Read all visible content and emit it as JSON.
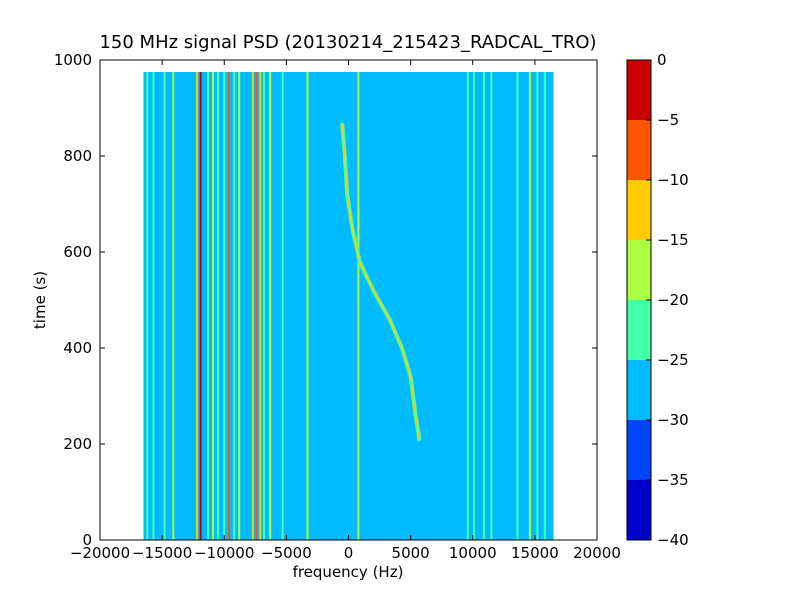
{
  "chart_data": {
    "type": "heatmap",
    "title": "150 MHz signal PSD (20130214_215423_RADCAL_TRO)",
    "xlabel": "frequency (Hz)",
    "ylabel": "time (s)",
    "xlim": [
      -20000,
      20000
    ],
    "ylim": [
      0,
      1000
    ],
    "xticks": [
      "−20000",
      "−15000",
      "−10000",
      "−5000",
      "0",
      "5000",
      "10000",
      "15000",
      "20000"
    ],
    "yticks": [
      "0",
      "200",
      "400",
      "600",
      "800",
      "1000"
    ],
    "data_extent": {
      "x": [
        -16500,
        16500
      ],
      "y": [
        0,
        975
      ]
    },
    "colorbar": {
      "levels": [
        -40,
        -35,
        -30,
        -25,
        -20,
        -15,
        -10,
        -5,
        0
      ],
      "tick_labels": [
        "−40",
        "−35",
        "−30",
        "−25",
        "−20",
        "−15",
        "−10",
        "−5",
        "0"
      ],
      "colors": [
        "#0000cc",
        "#0044ff",
        "#00bbff",
        "#44ffaa",
        "#aaff44",
        "#ffcc00",
        "#ff5500",
        "#cc0000"
      ]
    },
    "background_level_color": "#00bbff",
    "vertical_lines": [
      {
        "x": -16200,
        "color": "#44ffaa"
      },
      {
        "x": -15700,
        "color": "#44ffaa"
      },
      {
        "x": -14800,
        "color": "#44ffaa"
      },
      {
        "x": -14100,
        "color": "#aaff44"
      },
      {
        "x": -12200,
        "color": "#ffcc00"
      },
      {
        "x": -11900,
        "color": "#cc0000"
      },
      {
        "x": -11300,
        "color": "#44ffaa"
      },
      {
        "x": -10900,
        "color": "#aaff44"
      },
      {
        "x": -10500,
        "color": "#44ffaa"
      },
      {
        "x": -10000,
        "color": "#44ffaa"
      },
      {
        "x": -9600,
        "color": "#ff5500"
      },
      {
        "x": -9200,
        "color": "#44ffaa"
      },
      {
        "x": -8800,
        "color": "#aaff44"
      },
      {
        "x": -7700,
        "color": "#ffcc00"
      },
      {
        "x": -7400,
        "color": "#ff5500"
      },
      {
        "x": -7100,
        "color": "#ffcc00"
      },
      {
        "x": -6800,
        "color": "#44ffaa"
      },
      {
        "x": -6300,
        "color": "#aaff44"
      },
      {
        "x": -5300,
        "color": "#44ffaa"
      },
      {
        "x": -3300,
        "color": "#aaff44"
      },
      {
        "x": 800,
        "color": "#aaff44"
      },
      {
        "x": 9600,
        "color": "#44ffaa"
      },
      {
        "x": 10100,
        "color": "#44ffaa"
      },
      {
        "x": 10900,
        "color": "#44ffaa"
      },
      {
        "x": 11500,
        "color": "#44ffaa"
      },
      {
        "x": 13600,
        "color": "#44ffaa"
      },
      {
        "x": 14600,
        "color": "#aaff44"
      },
      {
        "x": 15200,
        "color": "#44ffaa"
      },
      {
        "x": 15800,
        "color": "#44ffaa"
      }
    ],
    "drifting_signal": {
      "color": "#ffcc00",
      "points": [
        [
          -500,
          865
        ],
        [
          -300,
          800
        ],
        [
          -100,
          720
        ],
        [
          300,
          650
        ],
        [
          900,
          580
        ],
        [
          2000,
          520
        ],
        [
          3300,
          460
        ],
        [
          4300,
          400
        ],
        [
          5000,
          340
        ],
        [
          5400,
          260
        ],
        [
          5700,
          210
        ]
      ]
    }
  }
}
